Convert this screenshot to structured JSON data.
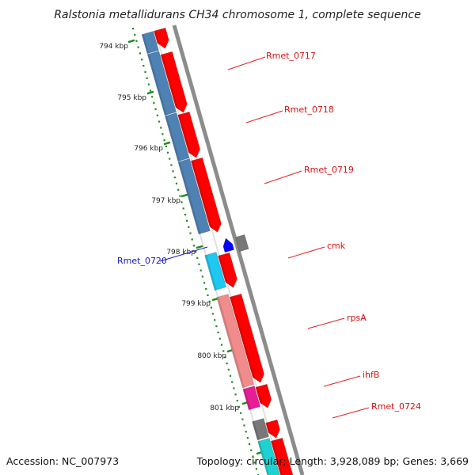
{
  "title": "Ralstonia metallidurans CH34 chromosome 1, complete sequence",
  "footer": {
    "accession": "Accession: NC_007973",
    "summary": "Topology: circular; Length: 3,928,089 bp; Genes: 3,669"
  },
  "scale": {
    "ticks": [
      "794 kbp",
      "795 kbp",
      "796 kbp",
      "797 kbp",
      "798 kbp",
      "799 kbp",
      "800 kbp",
      "801 kbp"
    ]
  },
  "colors": {
    "backbone": "#8c8c8c",
    "gene_forward": "#ff0000",
    "gene_reverse": "#0000ff",
    "cds_blue": "#4f82b4",
    "cds_cyan": "#1ec8f0",
    "cds_pink": "#f08c8c",
    "cds_magenta": "#e61e96",
    "cds_gray": "#787878",
    "cds_teal": "#1ed2d2",
    "ruler": "#1e8c1e"
  },
  "labels": {
    "Rmet_0717": "Rmet_0717",
    "Rmet_0718": "Rmet_0718",
    "Rmet_0719": "Rmet_0719",
    "Rmet_0720": "Rmet_0720",
    "cmk": "cmk",
    "rpsA": "rpsA",
    "ihfB": "ihfB",
    "Rmet_0724": "Rmet_0724"
  }
}
